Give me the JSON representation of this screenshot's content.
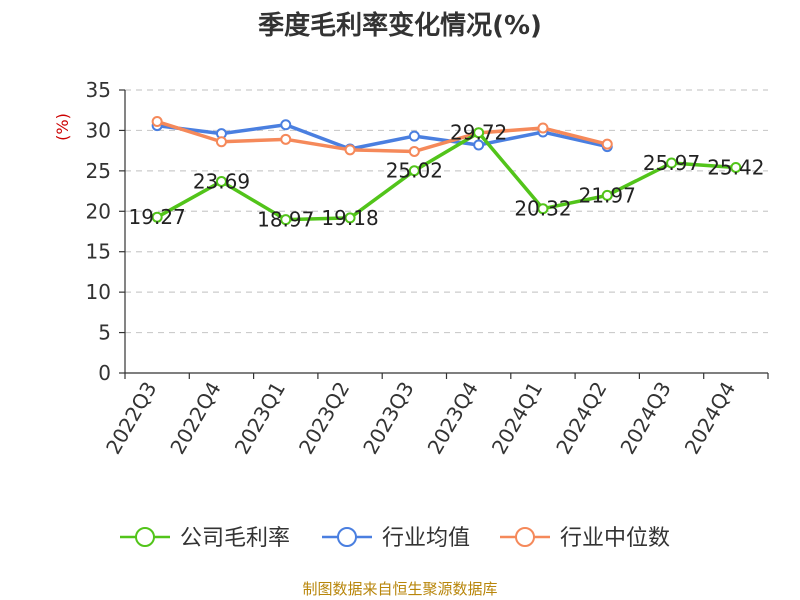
{
  "chart_data": {
    "type": "line",
    "title": "季度毛利率变化情况(%)",
    "ylabel": "(%)",
    "xlabel": "",
    "categories": [
      "2022Q3",
      "2022Q4",
      "2023Q1",
      "2023Q2",
      "2023Q3",
      "2023Q4",
      "2024Q1",
      "2024Q2",
      "2024Q3",
      "2024Q4"
    ],
    "ylim": [
      0,
      35
    ],
    "yticks": [
      0,
      5,
      10,
      15,
      20,
      25,
      30,
      35
    ],
    "grid": true,
    "legend_position": "bottom",
    "series": [
      {
        "name": "公司毛利率",
        "color": "#52c41a",
        "show_labels": true,
        "values": [
          19.27,
          23.69,
          18.97,
          19.18,
          25.02,
          29.72,
          20.32,
          21.97,
          25.97,
          25.42
        ]
      },
      {
        "name": "行业均值",
        "color": "#4a7fe0",
        "show_labels": false,
        "values": [
          30.6,
          29.6,
          30.7,
          27.7,
          29.3,
          28.2,
          29.8,
          28.0,
          null,
          null
        ]
      },
      {
        "name": "行业中位数",
        "color": "#f5895a",
        "show_labels": false,
        "values": [
          31.1,
          28.6,
          28.9,
          27.6,
          27.4,
          29.7,
          30.3,
          28.3,
          null,
          null
        ]
      }
    ]
  },
  "source": "制图数据来自恒生聚源数据库"
}
